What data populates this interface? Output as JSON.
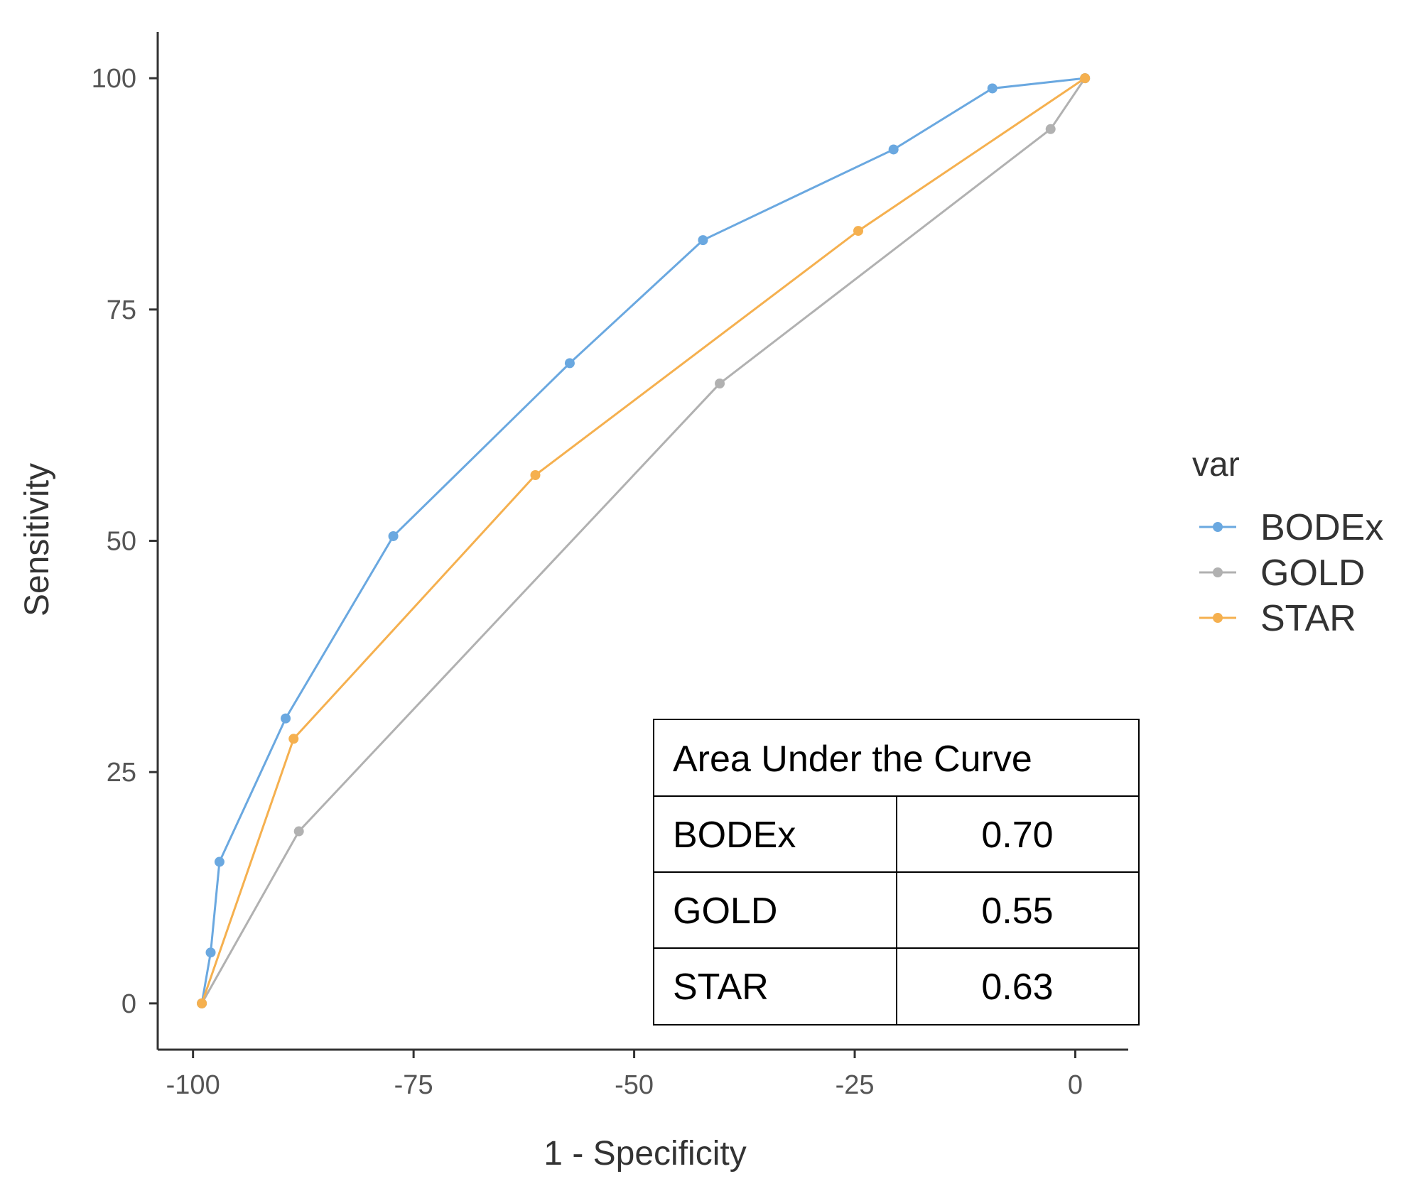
{
  "chart_data": {
    "type": "line",
    "xlabel": "1 - Specificity",
    "ylabel": "Sensitivity",
    "xlim": [
      -104,
      6
    ],
    "ylim": [
      -5,
      105
    ],
    "x_ticks": [
      -100,
      -75,
      -50,
      -25,
      0
    ],
    "y_ticks": [
      0,
      25,
      50,
      75,
      100
    ],
    "legend_title": "var",
    "legend_position": "right",
    "series": [
      {
        "name": "BODEx",
        "color": "#6aa8e0",
        "points": [
          [
            -99,
            0
          ],
          [
            -98,
            5.5
          ],
          [
            -97,
            15.3
          ],
          [
            -89.5,
            30.8
          ],
          [
            -77.3,
            50.5
          ],
          [
            -57.3,
            69.2
          ],
          [
            -42.2,
            82.5
          ],
          [
            -20.6,
            92.3
          ],
          [
            -9.4,
            98.9
          ],
          [
            1.1,
            100
          ]
        ]
      },
      {
        "name": "GOLD",
        "color": "#b1b1b1",
        "points": [
          [
            -99,
            0
          ],
          [
            -88,
            18.6
          ],
          [
            -40.3,
            67
          ],
          [
            -2.8,
            94.5
          ],
          [
            1.1,
            100
          ]
        ]
      },
      {
        "name": "STAR",
        "color": "#f5b04f",
        "points": [
          [
            -99,
            0
          ],
          [
            -88.6,
            28.6
          ],
          [
            -61.2,
            57.1
          ],
          [
            -24.6,
            83.5
          ],
          [
            1.1,
            100
          ]
        ]
      }
    ],
    "annotation_table": {
      "title": "Area Under the Curve",
      "rows": [
        {
          "label": "BODEx",
          "value": "0.70"
        },
        {
          "label": "GOLD",
          "value": "0.55"
        },
        {
          "label": "STAR",
          "value": "0.63"
        }
      ]
    }
  }
}
